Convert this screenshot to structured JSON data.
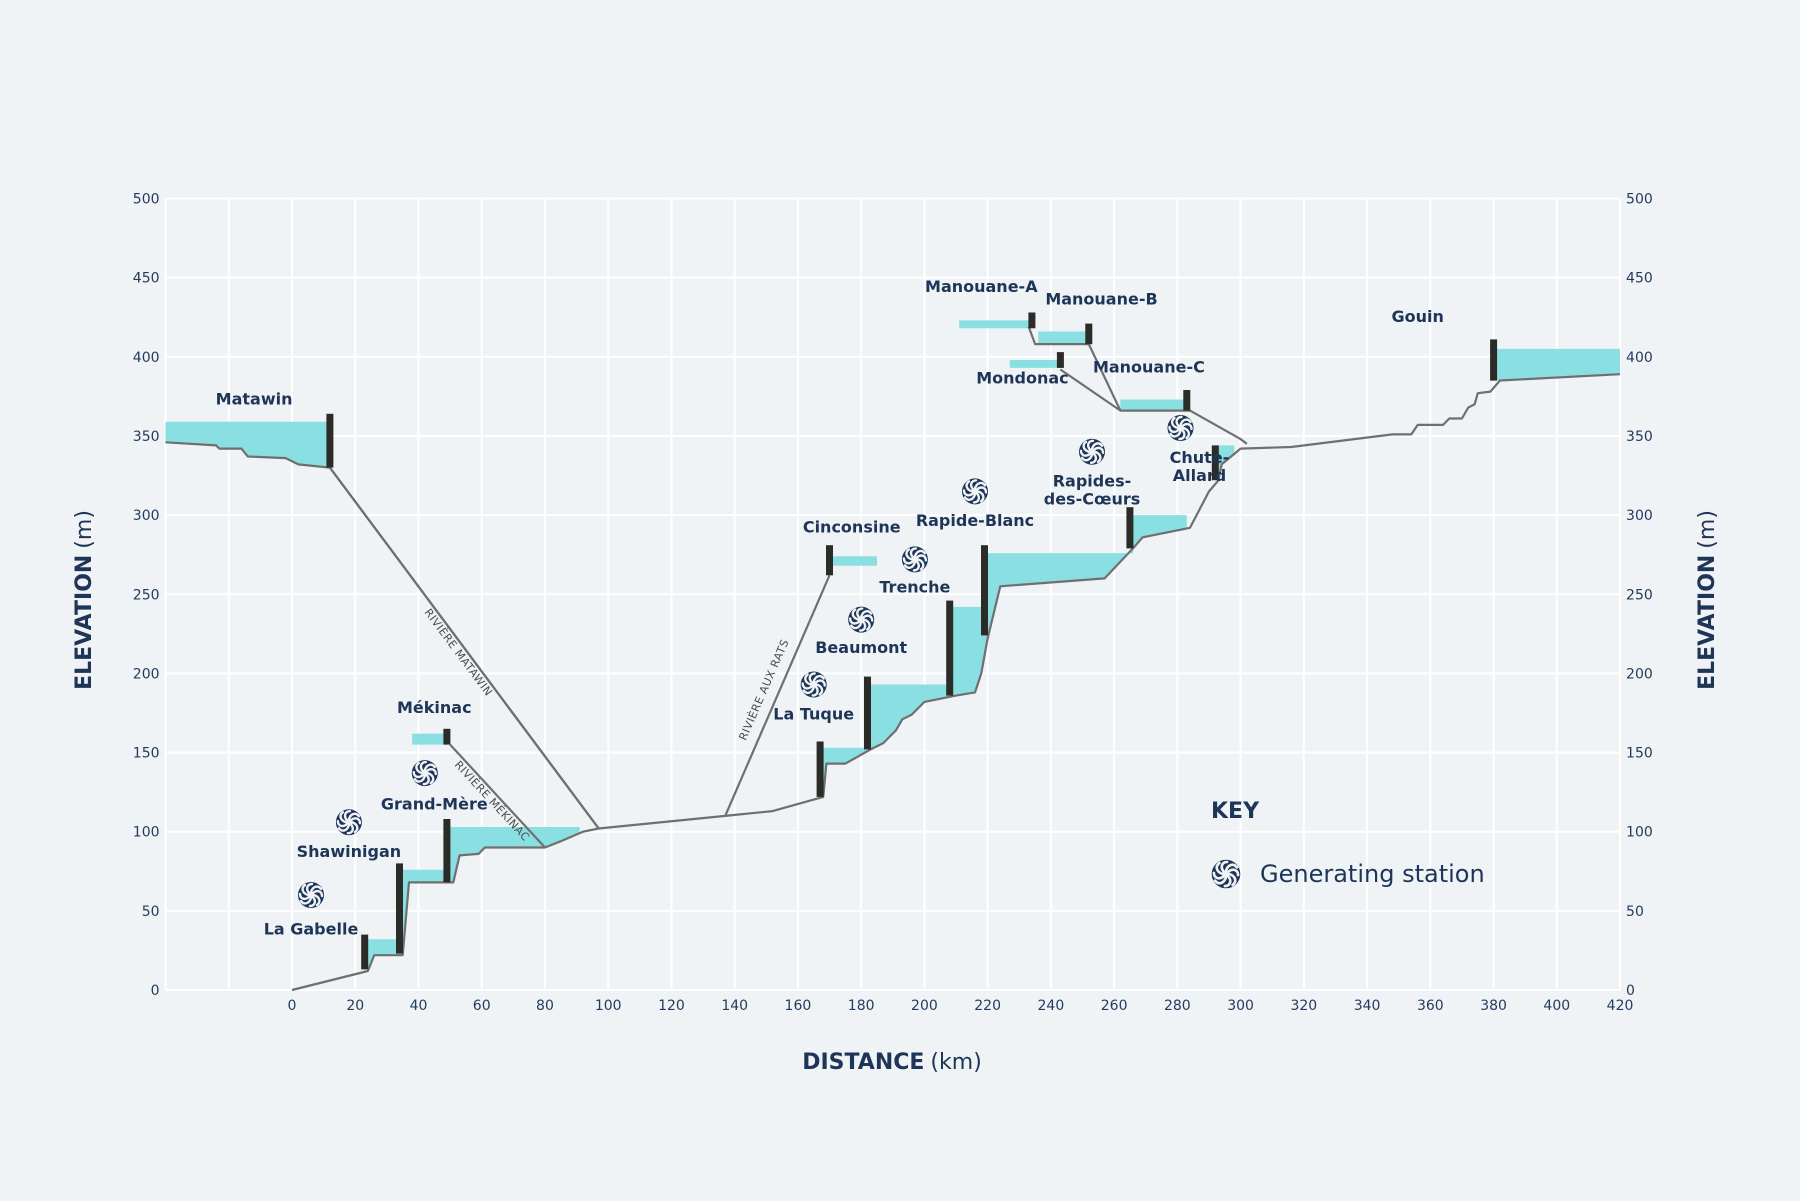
{
  "colors": {
    "background": "#eff3f6",
    "grid": "#ffffff",
    "water": "#8adfe2",
    "dam": "#2b2b27",
    "profile": "#6f6f6f",
    "text": "#1e3557",
    "icon": "#1e3557"
  },
  "chart_data": {
    "type": "profile",
    "x_axis": {
      "title": "DISTANCE",
      "unit": "km",
      "range": [
        -40,
        420
      ],
      "ticks": [
        0,
        20,
        40,
        60,
        80,
        100,
        120,
        140,
        160,
        180,
        200,
        220,
        240,
        260,
        280,
        300,
        320,
        340,
        360,
        380,
        400,
        420
      ]
    },
    "y_axis": {
      "title": "ELEVATION",
      "unit": "m",
      "range": [
        0,
        500
      ],
      "ticks": [
        0,
        50,
        100,
        150,
        200,
        250,
        300,
        350,
        400,
        450,
        500
      ]
    },
    "main_profile": [
      [
        0,
        0
      ],
      [
        24,
        12
      ],
      [
        26,
        22
      ],
      [
        35,
        22
      ],
      [
        37,
        68
      ],
      [
        51,
        68
      ],
      [
        53,
        85
      ],
      [
        59,
        86
      ],
      [
        61,
        90
      ],
      [
        80,
        90
      ],
      [
        85,
        94
      ],
      [
        92,
        100
      ],
      [
        97,
        102
      ],
      [
        137,
        110
      ],
      [
        152,
        113
      ],
      [
        168,
        122
      ],
      [
        169,
        143
      ],
      [
        175,
        143
      ],
      [
        183,
        152
      ],
      [
        187,
        156
      ],
      [
        191,
        164
      ],
      [
        193,
        171
      ],
      [
        196,
        174
      ],
      [
        200,
        182
      ],
      [
        210,
        186
      ],
      [
        216,
        188
      ],
      [
        218,
        200
      ],
      [
        220,
        222
      ],
      [
        224,
        255
      ],
      [
        257,
        260
      ],
      [
        266,
        279
      ],
      [
        269,
        286
      ],
      [
        284,
        292
      ],
      [
        290,
        315
      ],
      [
        293,
        322
      ],
      [
        294,
        332
      ],
      [
        300,
        342
      ],
      [
        316,
        343
      ],
      [
        348,
        351
      ],
      [
        354,
        351
      ],
      [
        356,
        357
      ],
      [
        364,
        357
      ],
      [
        366,
        361
      ],
      [
        370,
        361
      ],
      [
        372,
        368
      ],
      [
        374,
        370
      ],
      [
        375,
        377
      ],
      [
        379,
        378
      ],
      [
        382,
        385
      ],
      [
        420,
        389
      ]
    ],
    "matawin_profile": [
      [
        -40,
        346
      ],
      [
        -24,
        344
      ],
      [
        -23,
        342
      ],
      [
        -16,
        342
      ],
      [
        -14,
        337
      ],
      [
        -2,
        336
      ],
      [
        2,
        332
      ],
      [
        12,
        330
      ],
      [
        97,
        102
      ]
    ],
    "rivers": [
      {
        "name": "RIVIÈRE MATAWIN",
        "path": [
          [
            12,
            330
          ],
          [
            97,
            102
          ]
        ]
      },
      {
        "name": "RIVIÈRE MÉKINAC",
        "path": [
          [
            50,
            155
          ],
          [
            80,
            90
          ]
        ]
      },
      {
        "name": "RIVIÈRE AUX RATS",
        "path": [
          [
            137,
            110
          ],
          [
            170,
            262
          ]
        ]
      }
    ],
    "upper_profiles": [
      [
        [
          243,
          392
        ],
        [
          262,
          366
        ],
        [
          284,
          366
        ],
        [
          300,
          348
        ],
        [
          302,
          345
        ]
      ],
      [
        [
          233,
          419
        ],
        [
          235,
          408
        ],
        [
          252,
          408
        ],
        [
          262,
          366
        ]
      ]
    ],
    "reservoirs": [
      {
        "name": "Gouin",
        "x": [
          380,
          420
        ],
        "top": 405,
        "bottom_left": 385,
        "bottom_right": 389
      },
      {
        "name": "Matawin",
        "x": [
          -40,
          12
        ],
        "top": 359,
        "bottom": "matawin"
      },
      {
        "name": "Mékinac",
        "x": [
          38,
          49
        ],
        "top": 162,
        "bottom_left": 155,
        "bottom_right": 155
      },
      {
        "name": "Cinconsine",
        "x": [
          171,
          185
        ],
        "top": 274,
        "bottom_left": 268,
        "bottom_right": 268
      },
      {
        "name": "Manouane-A",
        "x": [
          211,
          234
        ],
        "top": 423,
        "bottom_left": 418,
        "bottom_right": 418
      },
      {
        "name": "Manouane-B",
        "x": [
          236,
          253
        ],
        "top": 416,
        "bottom_left": 408,
        "bottom_right": 408
      },
      {
        "name": "Mondonac",
        "x": [
          227,
          243
        ],
        "top": 398,
        "bottom_left": 393,
        "bottom_right": 393
      },
      {
        "name": "Manouane-C",
        "x": [
          262,
          284
        ],
        "top": 373,
        "bottom_left": 366,
        "bottom_right": 366
      },
      {
        "name": "La Gabelle",
        "x": [
          24,
          35
        ],
        "top": 32,
        "bottom": "main"
      },
      {
        "name": "Shawinigan",
        "x": [
          35,
          50
        ],
        "top": 76,
        "bottom": "main"
      },
      {
        "name": "Grand-Mère",
        "x": [
          50,
          91
        ],
        "top": 103,
        "bottom": "main"
      },
      {
        "name": "La Tuque",
        "x": [
          168,
          183
        ],
        "top": 153,
        "bottom": "main"
      },
      {
        "name": "Beaumont",
        "x": [
          183,
          209
        ],
        "top": 193,
        "bottom": "main"
      },
      {
        "name": "Trenche",
        "x": [
          209,
          219
        ],
        "top": 242,
        "bottom": "main"
      },
      {
        "name": "Rapide-Blanc",
        "x": [
          219,
          266
        ],
        "top": 276,
        "bottom": "main"
      },
      {
        "name": "Rapides-des-Cœurs",
        "x": [
          266,
          283
        ],
        "top": 300,
        "bottom": "main"
      },
      {
        "name": "Chute-Allard",
        "x": [
          293,
          298
        ],
        "top": 344,
        "bottom": "main"
      }
    ],
    "dams": [
      {
        "name": "La Gabelle",
        "x": 23,
        "bottom": 13,
        "top": 35
      },
      {
        "name": "Shawinigan",
        "x": 34,
        "bottom": 23,
        "top": 80
      },
      {
        "name": "Grand-Mère",
        "x": 49,
        "bottom": 68,
        "top": 108
      },
      {
        "name": "Mékinac",
        "x": 49,
        "bottom": 155,
        "top": 165
      },
      {
        "name": "Matawin",
        "x": 12,
        "bottom": 330,
        "top": 364
      },
      {
        "name": "La Tuque",
        "x": 167,
        "bottom": 122,
        "top": 157
      },
      {
        "name": "Beaumont",
        "x": 182,
        "bottom": 152,
        "top": 198
      },
      {
        "name": "Cinconsine",
        "x": 170,
        "bottom": 262,
        "top": 281
      },
      {
        "name": "Trenche",
        "x": 208,
        "bottom": 186,
        "top": 246
      },
      {
        "name": "Rapide-Blanc",
        "x": 219,
        "bottom": 224,
        "top": 281
      },
      {
        "name": "Rapides-des-Cœurs",
        "x": 265,
        "bottom": 279,
        "top": 305
      },
      {
        "name": "Chute-Allard",
        "x": 292,
        "bottom": 322,
        "top": 344
      },
      {
        "name": "Manouane-A",
        "x": 234,
        "bottom": 418,
        "top": 428
      },
      {
        "name": "Manouane-B",
        "x": 252,
        "bottom": 408,
        "top": 421
      },
      {
        "name": "Mondonac",
        "x": 243,
        "bottom": 393,
        "top": 403
      },
      {
        "name": "Manouane-C",
        "x": 283,
        "bottom": 366,
        "top": 379
      },
      {
        "name": "Gouin",
        "x": 380,
        "bottom": 385,
        "top": 411
      }
    ],
    "labels": [
      {
        "text": "Matawin",
        "x": -12,
        "y": 370
      },
      {
        "text": "Mékinac",
        "x": 45,
        "y": 175
      },
      {
        "text": "Grand-Mère",
        "x": 45,
        "y": 114
      },
      {
        "text": "Shawinigan",
        "x": 18,
        "y": 84
      },
      {
        "text": "La Gabelle",
        "x": 6,
        "y": 35
      },
      {
        "text": "Cinconsine",
        "x": 177,
        "y": 289
      },
      {
        "text": "Rapide-Blanc",
        "x": 216,
        "y": 293
      },
      {
        "text": "Trenche",
        "x": 197,
        "y": 251
      },
      {
        "text": "Beaumont",
        "x": 180,
        "y": 213
      },
      {
        "text": "La Tuque",
        "x": 165,
        "y": 171
      },
      {
        "text": "Manouane-A",
        "x": 218,
        "y": 441
      },
      {
        "text": "Manouane-B",
        "x": 256,
        "y": 433
      },
      {
        "text": "Mondonac",
        "x": 231,
        "y": 383
      },
      {
        "text": "Manouane-C",
        "x": 271,
        "y": 390
      },
      {
        "text": "Gouin",
        "x": 356,
        "y": 422
      }
    ],
    "multiline_labels": [
      {
        "lines": [
          "Rapides-",
          "des-Cœurs"
        ],
        "x": 253,
        "y": 318
      },
      {
        "lines": [
          "Chute-",
          "Allard"
        ],
        "x": 287,
        "y": 333
      }
    ],
    "generating_stations": [
      {
        "name": "La Gabelle",
        "x": 6,
        "y": 60
      },
      {
        "name": "Shawinigan",
        "x": 18,
        "y": 106
      },
      {
        "name": "Grand-Mère",
        "x": 42,
        "y": 137
      },
      {
        "name": "La Tuque",
        "x": 165,
        "y": 193
      },
      {
        "name": "Beaumont",
        "x": 180,
        "y": 234
      },
      {
        "name": "Trenche",
        "x": 197,
        "y": 272
      },
      {
        "name": "Rapide-Blanc",
        "x": 216,
        "y": 315
      },
      {
        "name": "Rapides-des-Cœurs",
        "x": 253,
        "y": 340
      },
      {
        "name": "Chute-Allard",
        "x": 281,
        "y": 355
      }
    ],
    "key": {
      "title": "KEY",
      "items": [
        {
          "icon": "turbine-icon",
          "label": "Generating station"
        }
      ]
    }
  }
}
